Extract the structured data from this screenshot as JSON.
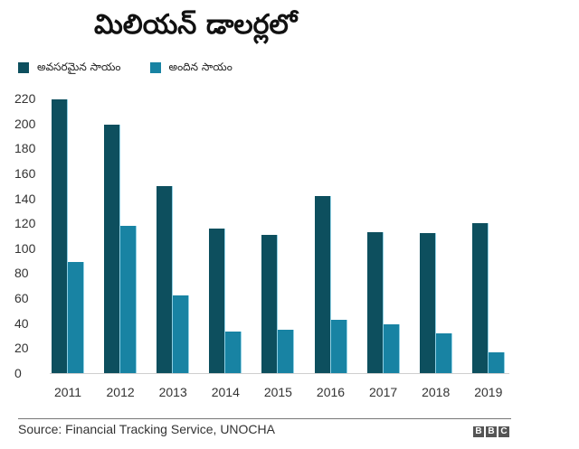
{
  "title": "మిలియన్ డాలర్లలో",
  "legend": {
    "items": [
      {
        "label": "అవసరమైన సాయం",
        "color": "#0d4f5e"
      },
      {
        "label": "అందిన సాయం",
        "color": "#1883a3"
      }
    ]
  },
  "y_axis": {
    "ticks": [
      "0",
      "20",
      "40",
      "60",
      "80",
      "100",
      "120",
      "140",
      "160",
      "180",
      "200",
      "220"
    ]
  },
  "footer": {
    "source": "Source: Financial Tracking Service, UNOCHA",
    "logo": [
      "B",
      "B",
      "C"
    ]
  },
  "chart_data": {
    "type": "bar",
    "title": "మిలియన్ డాలర్లలో",
    "xlabel": "",
    "ylabel": "",
    "categories": [
      "2011",
      "2012",
      "2013",
      "2014",
      "2015",
      "2016",
      "2017",
      "2018",
      "2019"
    ],
    "series": [
      {
        "name": "అవసరమైన సాయం",
        "color": "#0d4f5e",
        "values": [
          219,
          199,
          150,
          116,
          111,
          142,
          113,
          112,
          120
        ]
      },
      {
        "name": "అందిన సాయం",
        "color": "#1883a3",
        "values": [
          89,
          118,
          62,
          33,
          35,
          43,
          39,
          32,
          17
        ]
      }
    ],
    "ylim": [
      0,
      220
    ],
    "yticks": [
      0,
      20,
      40,
      60,
      80,
      100,
      120,
      140,
      160,
      180,
      200,
      220
    ],
    "grid": false,
    "legend_position": "top-left",
    "source": "Source: Financial Tracking Service, UNOCHA"
  }
}
